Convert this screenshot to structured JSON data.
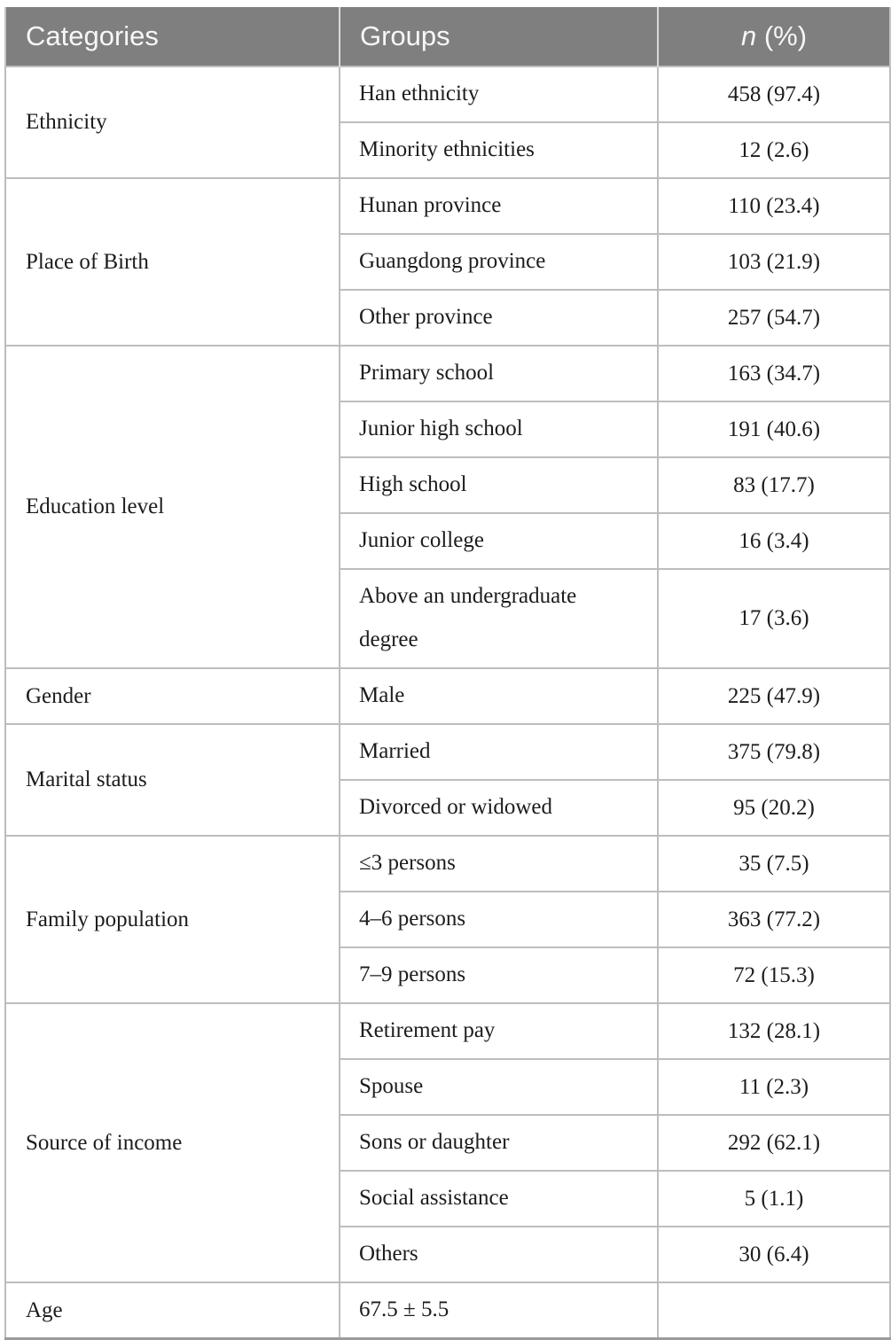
{
  "header": {
    "categories": "Categories",
    "groups": "Groups",
    "n_label": "n",
    "n_suffix": " (%)"
  },
  "colors": {
    "header_bg": "#7f7f7f",
    "header_text": "#f7f7f7",
    "grid_line": "#bdbdbd",
    "body_text": "#1c1c1c"
  },
  "sections": [
    {
      "category": "Ethnicity",
      "rows": [
        {
          "group": "Han ethnicity",
          "n": "458 (97.4)"
        },
        {
          "group": "Minority ethnicities",
          "n": "12 (2.6)"
        }
      ]
    },
    {
      "category": "Place of Birth",
      "rows": [
        {
          "group": "Hunan province",
          "n": "110 (23.4)"
        },
        {
          "group": "Guangdong province",
          "n": "103 (21.9)"
        },
        {
          "group": "Other province",
          "n": "257 (54.7)"
        }
      ]
    },
    {
      "category": "Education level",
      "rows": [
        {
          "group": "Primary school",
          "n": "163 (34.7)"
        },
        {
          "group": "Junior high school",
          "n": "191 (40.6)"
        },
        {
          "group": "High school",
          "n": "83 (17.7)"
        },
        {
          "group": "Junior college",
          "n": "16 (3.4)"
        },
        {
          "group": "Above an undergraduate degree",
          "n": "17 (3.6)"
        }
      ]
    },
    {
      "category": "Gender",
      "rows": [
        {
          "group": "Male",
          "n": "225 (47.9)"
        }
      ]
    },
    {
      "category": "Marital status",
      "rows": [
        {
          "group": "Married",
          "n": "375 (79.8)"
        },
        {
          "group": "Divorced or widowed",
          "n": "95 (20.2)"
        }
      ]
    },
    {
      "category": "Family population",
      "rows": [
        {
          "group": "≤3 persons",
          "n": "35 (7.5)"
        },
        {
          "group": "4–6 persons",
          "n": "363 (77.2)"
        },
        {
          "group": "7–9 persons",
          "n": "72 (15.3)"
        }
      ]
    },
    {
      "category": "Source of income",
      "rows": [
        {
          "group": "Retirement pay",
          "n": "132 (28.1)"
        },
        {
          "group": "Spouse",
          "n": "11 (2.3)"
        },
        {
          "group": "Sons or daughter",
          "n": "292 (62.1)"
        },
        {
          "group": "Social assistance",
          "n": "5 (1.1)"
        },
        {
          "group": "Others",
          "n": "30 (6.4)"
        }
      ]
    },
    {
      "category": "Age",
      "rows": [
        {
          "group": "67.5 ± 5.5",
          "n": ""
        }
      ]
    }
  ]
}
